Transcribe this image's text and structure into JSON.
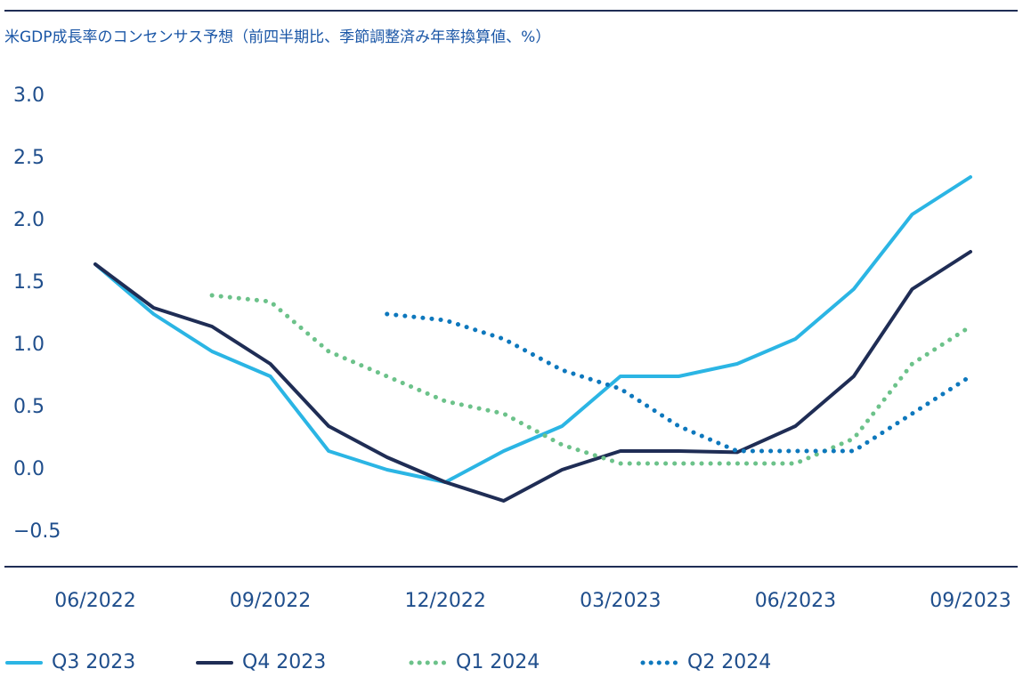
{
  "chart_data": {
    "type": "line",
    "title": "米GDP成長率のコンセンサス予想（前四半期比、季節調整済み年率換算値、%）",
    "categories": [
      "06/2022",
      null,
      null,
      "09/2022",
      null,
      null,
      "12/2022",
      null,
      null,
      "03/2023",
      null,
      null,
      "06/2023",
      null,
      null,
      "09/2023"
    ],
    "series": [
      {
        "name": "Q3 2023",
        "color": "#2bb5e4",
        "style": "solid",
        "values": [
          1.65,
          1.25,
          0.95,
          0.75,
          0.15,
          0.0,
          -0.1,
          0.15,
          0.35,
          0.75,
          0.75,
          0.85,
          1.05,
          1.45,
          2.05,
          2.35
        ]
      },
      {
        "name": "Q4 2023",
        "color": "#1f2d55",
        "style": "solid",
        "values": [
          1.65,
          1.3,
          1.15,
          0.85,
          0.35,
          0.1,
          -0.1,
          -0.25,
          0.0,
          0.15,
          0.15,
          0.14,
          0.35,
          0.75,
          1.45,
          1.75
        ]
      },
      {
        "name": "Q1 2024",
        "color": "#6cc28a",
        "style": "dotted",
        "values": [
          null,
          null,
          1.4,
          1.35,
          0.95,
          0.75,
          0.55,
          0.45,
          0.2,
          0.05,
          0.05,
          0.05,
          0.05,
          0.25,
          0.85,
          1.15
        ]
      },
      {
        "name": "Q2 2024",
        "color": "#0e78bd",
        "style": "dotted",
        "values": [
          null,
          null,
          null,
          null,
          null,
          1.25,
          1.2,
          1.05,
          0.8,
          0.65,
          0.35,
          0.15,
          0.15,
          0.15,
          0.45,
          0.75
        ]
      }
    ],
    "ylim": [
      -0.8,
      3.2
    ],
    "yticks": [
      {
        "value": 3.0,
        "label": "3.0"
      },
      2.5,
      {
        "value": 2.0,
        "label": "2.0"
      },
      1.5,
      {
        "value": 1.0,
        "label": "1.0"
      },
      0.5,
      {
        "value": 0.0,
        "label": "0.0"
      },
      {
        "value": -0.5,
        "label": "−0.5"
      }
    ],
    "grid": false,
    "legend": "bottom"
  }
}
